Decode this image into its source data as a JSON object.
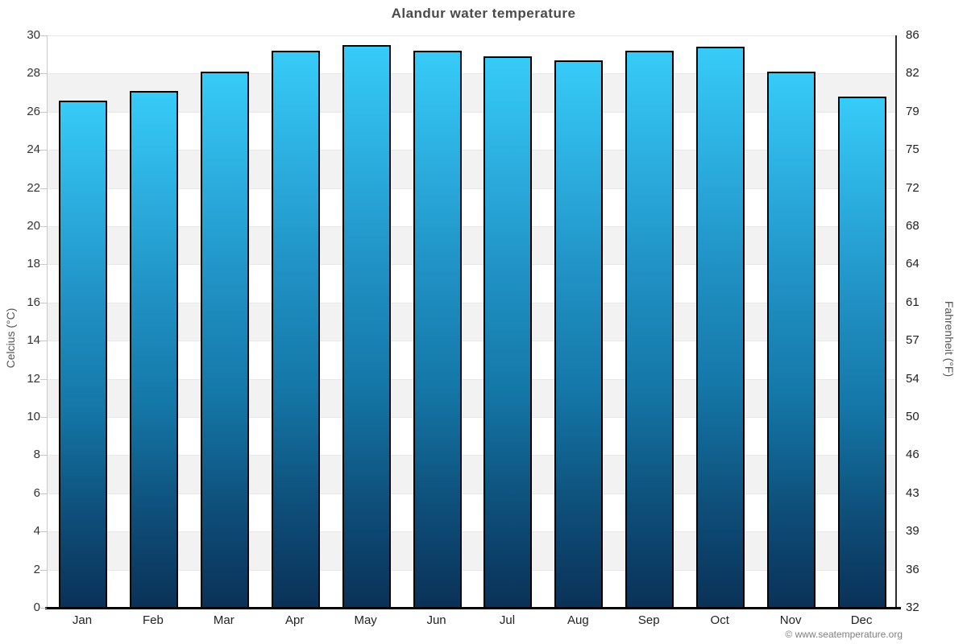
{
  "chart_data": {
    "type": "bar",
    "title": "Alandur water temperature",
    "categories": [
      "Jan",
      "Feb",
      "Mar",
      "Apr",
      "May",
      "Jun",
      "Jul",
      "Aug",
      "Sep",
      "Oct",
      "Nov",
      "Dec"
    ],
    "series": [
      {
        "name": "Water temperature",
        "unit": "°C",
        "values": [
          26.6,
          27.1,
          28.1,
          29.2,
          29.5,
          29.2,
          28.9,
          28.7,
          29.2,
          29.4,
          28.1,
          26.8
        ]
      }
    ],
    "xlabel": "",
    "ylabel_left": "Celcius (°C)",
    "ylabel_right": "Fahrenheit (°F)",
    "ylim_celsius": [
      0,
      30
    ],
    "celsius_ticks": [
      0,
      2,
      4,
      6,
      8,
      10,
      12,
      14,
      16,
      18,
      20,
      22,
      24,
      26,
      28,
      30
    ],
    "fahrenheit_ticks": [
      32,
      36,
      39,
      43,
      46,
      50,
      54,
      57,
      61,
      64,
      68,
      72,
      75,
      79,
      82,
      86
    ],
    "legend": "none",
    "grid": "alternating 2-degree horizontal bands",
    "colors": {
      "bar_gradient_top": "#37cbf8",
      "bar_gradient_bottom": "#0a3157",
      "bar_border": "#000000",
      "band_alternate": "#f2f2f2",
      "band_base": "#ffffff",
      "gridline": "#e7e7e7",
      "axis_left_line": "#c8c8c8",
      "axis_right_line": "#2b2b2b",
      "x_axis_line": "#000000",
      "title_color": "#4a4a4a",
      "tick_label_color": "#333333"
    }
  },
  "footer": {
    "copyright": "© www.seatemperature.org"
  }
}
